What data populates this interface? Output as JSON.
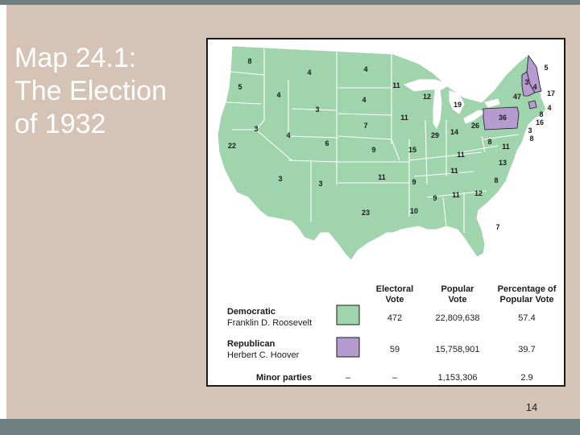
{
  "slide": {
    "title_lines": [
      "Map 24.1:",
      "The Election",
      "of 1932"
    ],
    "page_number": "14"
  },
  "colors": {
    "democratic": "#9fd4ac",
    "republican": "#b59bd0",
    "background": "#d5c3b5",
    "frame_bar": "#6e7f80"
  },
  "map": {
    "electoral_votes": {
      "WA": "8",
      "OR": "5",
      "CA": "22",
      "ID": "4",
      "NV": "3",
      "MT": "4",
      "WY": "3",
      "UT": "4",
      "AZ": "3",
      "CO": "6",
      "NM": "3",
      "ND": "4",
      "SD": "4",
      "NE": "7",
      "KS": "9",
      "OK": "11",
      "TX": "23",
      "MN": "11",
      "IA": "11",
      "MO": "15",
      "AR": "9",
      "LA": "10",
      "WI": "12",
      "IL": "29",
      "MI": "19",
      "IN": "14",
      "OH": "26",
      "KY": "11",
      "TN": "11",
      "MS": "9",
      "AL": "11",
      "GA": "12",
      "FL": "7",
      "SC": "8",
      "NC": "13",
      "VA": "11",
      "WV": "8",
      "PA": "36",
      "NY": "47",
      "ME": "5",
      "VT": "3",
      "NH": "4",
      "MA": "17",
      "RI": "4",
      "CT": "8",
      "NJ": "16",
      "DE": "3",
      "MD": "8"
    }
  },
  "legend": {
    "headers": {
      "electoral": [
        "Electoral",
        "Vote"
      ],
      "popular": [
        "Popular",
        "Vote"
      ],
      "percentage": [
        "Percentage of",
        "Popular Vote"
      ]
    },
    "rows": [
      {
        "party": "Democratic",
        "candidate": "Franklin D. Roosevelt",
        "electoral": "472",
        "popular": "22,809,638",
        "percent": "57.4"
      },
      {
        "party": "Republican",
        "candidate": "Herbert C. Hoover",
        "electoral": "59",
        "popular": "15,758,901",
        "percent": "39.7"
      },
      {
        "party": "Minor parties",
        "marker": "–",
        "electoral": "–",
        "popular": "1,153,306",
        "percent": "2.9"
      }
    ]
  }
}
